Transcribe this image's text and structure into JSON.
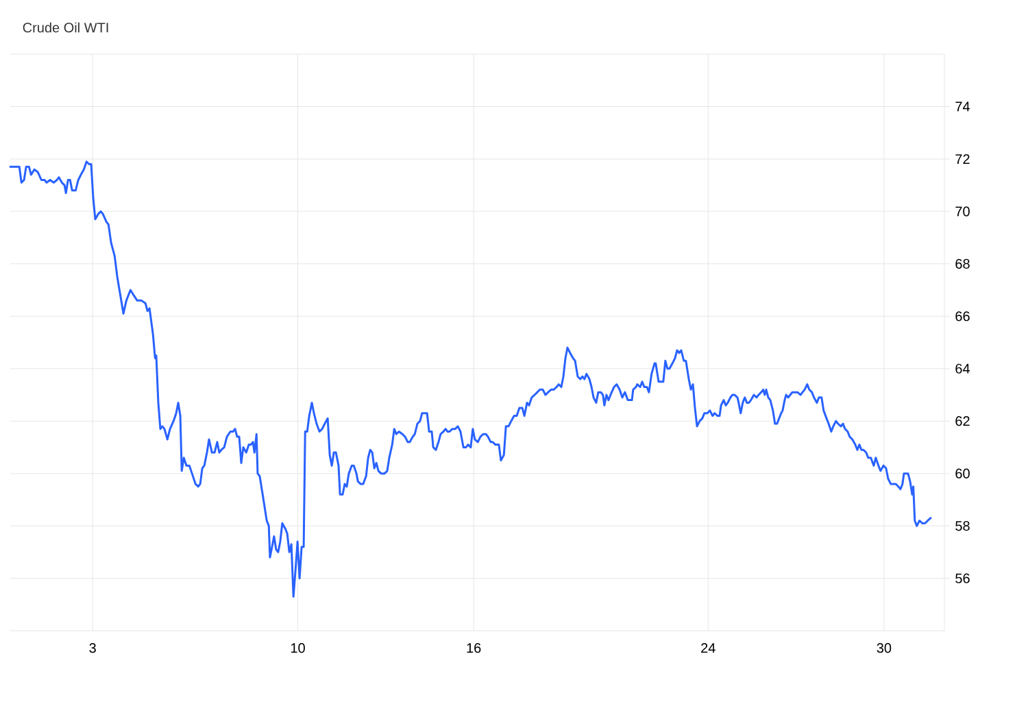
{
  "chart_data": {
    "type": "line",
    "title": "Crude Oil WTI",
    "color": "#2962ff",
    "grid": true,
    "xlim": [
      0.19,
      32.06
    ],
    "xticks": [
      3,
      10,
      16,
      24,
      30
    ],
    "ylim": [
      54,
      76
    ],
    "yticks": [
      56,
      58,
      60,
      62,
      64,
      66,
      68,
      70,
      72,
      74
    ],
    "x": [
      0.19,
      0.43,
      0.5,
      0.57,
      0.66,
      0.73,
      0.83,
      0.9,
      1.01,
      1.13,
      1.25,
      1.36,
      1.43,
      1.55,
      1.67,
      1.78,
      1.85,
      1.95,
      2.04,
      2.09,
      2.16,
      2.23,
      2.3,
      2.42,
      2.51,
      2.6,
      2.7,
      2.79,
      2.88,
      2.95,
      3.02,
      3.09,
      3.19,
      3.28,
      3.35,
      3.47,
      3.54,
      3.63,
      3.75,
      3.84,
      3.96,
      4.05,
      4.15,
      4.29,
      4.4,
      4.52,
      4.66,
      4.8,
      4.87,
      4.94,
      5.06,
      5.13,
      5.17,
      5.24,
      5.31,
      5.38,
      5.45,
      5.55,
      5.64,
      5.76,
      5.85,
      5.92,
      5.99,
      6.04,
      6.11,
      6.2,
      6.3,
      6.39,
      6.51,
      6.6,
      6.67,
      6.74,
      6.81,
      6.9,
      6.97,
      7.07,
      7.16,
      7.25,
      7.32,
      7.39,
      7.49,
      7.58,
      7.7,
      7.79,
      7.86,
      7.93,
      8.0,
      8.07,
      8.14,
      8.24,
      8.33,
      8.4,
      8.47,
      8.52,
      8.59,
      8.63,
      8.7,
      8.8,
      8.87,
      8.94,
      9.01,
      9.05,
      9.12,
      9.19,
      9.26,
      9.33,
      9.4,
      9.47,
      9.57,
      9.64,
      9.71,
      9.78,
      9.85,
      9.92,
      9.99,
      10.06,
      10.13,
      10.2,
      10.25,
      10.32,
      10.39,
      10.48,
      10.55,
      10.64,
      10.74,
      10.83,
      10.92,
      11.02,
      11.09,
      11.16,
      11.23,
      11.3,
      11.39,
      11.44,
      11.53,
      11.6,
      11.67,
      11.74,
      11.84,
      11.91,
      12.0,
      12.05,
      12.14,
      12.23,
      12.33,
      12.4,
      12.47,
      12.54,
      12.61,
      12.68,
      12.75,
      12.84,
      12.96,
      13.05,
      13.12,
      13.22,
      13.29,
      13.36,
      13.45,
      13.57,
      13.66,
      13.75,
      13.82,
      13.92,
      13.99,
      14.08,
      14.17,
      14.24,
      14.34,
      14.41,
      14.48,
      14.57,
      14.62,
      14.71,
      14.8,
      14.87,
      14.97,
      15.04,
      15.11,
      15.18,
      15.27,
      15.37,
      15.46,
      15.55,
      15.65,
      15.74,
      15.81,
      15.9,
      15.97,
      16.04,
      16.14,
      16.23,
      16.32,
      16.42,
      16.49,
      16.58,
      16.65,
      16.74,
      16.86,
      16.93,
      17.03,
      17.1,
      17.19,
      17.28,
      17.38,
      17.47,
      17.56,
      17.66,
      17.73,
      17.82,
      17.89,
      17.98,
      18.08,
      18.17,
      18.26,
      18.36,
      18.45,
      18.54,
      18.64,
      18.73,
      18.83,
      18.9,
      18.99,
      19.06,
      19.13,
      19.2,
      19.29,
      19.39,
      19.46,
      19.55,
      19.64,
      19.71,
      19.78,
      19.85,
      19.95,
      20.02,
      20.09,
      20.18,
      20.25,
      20.34,
      20.41,
      20.46,
      20.53,
      20.6,
      20.67,
      20.79,
      20.88,
      20.98,
      21.07,
      21.16,
      21.26,
      21.35,
      21.4,
      21.44,
      21.54,
      21.58,
      21.68,
      21.75,
      21.82,
      21.91,
      21.98,
      22.07,
      22.17,
      22.21,
      22.31,
      22.4,
      22.47,
      22.54,
      22.61,
      22.68,
      22.78,
      22.87,
      22.94,
      23.01,
      23.08,
      23.17,
      23.24,
      23.34,
      23.41,
      23.48,
      23.55,
      23.62,
      23.71,
      23.8,
      23.87,
      23.97,
      24.06,
      24.15,
      24.22,
      24.32,
      24.39,
      24.44,
      24.53,
      24.6,
      24.67,
      24.76,
      24.83,
      24.9,
      25.0,
      25.04,
      25.11,
      25.18,
      25.25,
      25.32,
      25.39,
      25.46,
      25.56,
      25.65,
      25.72,
      25.81,
      25.88,
      25.93,
      25.98,
      26.05,
      26.12,
      26.21,
      26.28,
      26.35,
      26.42,
      26.49,
      26.54,
      26.61,
      26.66,
      26.73,
      26.8,
      26.87,
      26.96,
      27.05,
      27.15,
      27.22,
      27.29,
      27.38,
      27.45,
      27.54,
      27.61,
      27.71,
      27.78,
      27.87,
      27.94,
      28.04,
      28.11,
      28.2,
      28.27,
      28.36,
      28.43,
      28.53,
      28.6,
      28.67,
      28.76,
      28.83,
      28.92,
      29.02,
      29.09,
      29.16,
      29.23,
      29.3,
      29.39,
      29.46,
      29.55,
      29.65,
      29.72,
      29.81,
      29.88,
      29.98,
      30.07,
      30.14,
      30.23,
      30.3,
      30.4,
      30.49,
      30.56,
      30.63,
      30.68,
      30.75,
      30.82,
      30.89,
      30.96,
      31.0,
      31.05,
      31.12,
      31.21,
      31.31,
      31.4,
      31.49,
      31.59
    ],
    "values": [
      71.7,
      71.7,
      71.7,
      71.1,
      71.2,
      71.7,
      71.7,
      71.4,
      71.6,
      71.5,
      71.2,
      71.2,
      71.1,
      71.2,
      71.1,
      71.2,
      71.3,
      71.1,
      71.0,
      70.7,
      71.2,
      71.2,
      70.8,
      70.8,
      71.2,
      71.4,
      71.6,
      71.9,
      71.8,
      71.8,
      70.5,
      69.7,
      69.9,
      70.0,
      69.9,
      69.6,
      69.5,
      68.8,
      68.3,
      67.5,
      66.7,
      66.1,
      66.6,
      67.0,
      66.8,
      66.6,
      66.6,
      66.5,
      66.2,
      66.3,
      65.3,
      64.4,
      64.5,
      62.7,
      61.7,
      61.8,
      61.7,
      61.3,
      61.7,
      62.0,
      62.3,
      62.7,
      62.2,
      60.1,
      60.6,
      60.3,
      60.3,
      60.0,
      59.6,
      59.5,
      59.6,
      60.2,
      60.3,
      60.8,
      61.3,
      60.8,
      60.8,
      61.2,
      60.8,
      60.9,
      61.0,
      61.4,
      61.6,
      61.6,
      61.7,
      61.4,
      61.4,
      60.4,
      61.0,
      60.8,
      61.1,
      61.1,
      61.2,
      60.8,
      61.5,
      60.0,
      59.9,
      59.2,
      58.7,
      58.2,
      58.0,
      56.8,
      57.2,
      57.6,
      57.1,
      57.0,
      57.4,
      58.1,
      57.9,
      57.7,
      57.0,
      57.3,
      55.3,
      56.3,
      57.4,
      56.0,
      57.2,
      57.2,
      61.6,
      61.6,
      62.2,
      62.7,
      62.3,
      61.9,
      61.6,
      61.7,
      61.9,
      62.1,
      60.7,
      60.3,
      60.8,
      60.8,
      60.3,
      59.2,
      59.2,
      59.6,
      59.5,
      60.0,
      60.3,
      60.3,
      60.0,
      59.7,
      59.6,
      59.6,
      59.9,
      60.6,
      60.9,
      60.8,
      60.2,
      60.4,
      60.1,
      60.0,
      60.0,
      60.1,
      60.6,
      61.1,
      61.7,
      61.5,
      61.6,
      61.5,
      61.4,
      61.2,
      61.2,
      61.4,
      61.5,
      61.9,
      62.0,
      62.3,
      62.3,
      62.3,
      61.6,
      61.6,
      61.0,
      60.9,
      61.2,
      61.5,
      61.6,
      61.7,
      61.6,
      61.6,
      61.7,
      61.7,
      61.8,
      61.6,
      61.0,
      61.0,
      61.1,
      61.0,
      61.7,
      61.3,
      61.2,
      61.4,
      61.5,
      61.5,
      61.4,
      61.2,
      61.2,
      61.1,
      61.1,
      60.5,
      60.7,
      61.8,
      61.8,
      62.0,
      62.2,
      62.2,
      62.5,
      62.5,
      62.2,
      62.7,
      62.6,
      62.9,
      63.0,
      63.1,
      63.2,
      63.2,
      63.0,
      63.1,
      63.2,
      63.2,
      63.3,
      63.4,
      63.3,
      63.7,
      64.4,
      64.8,
      64.6,
      64.4,
      64.3,
      63.7,
      63.6,
      63.7,
      63.6,
      63.8,
      63.6,
      63.3,
      62.9,
      62.7,
      63.1,
      63.1,
      63.0,
      62.6,
      63.0,
      62.8,
      63.0,
      63.3,
      63.4,
      63.2,
      62.9,
      63.1,
      62.8,
      62.8,
      62.8,
      63.2,
      63.3,
      63.4,
      63.3,
      63.5,
      63.3,
      63.3,
      63.1,
      63.8,
      64.2,
      64.2,
      63.5,
      63.5,
      63.5,
      64.3,
      64.0,
      64.0,
      64.2,
      64.4,
      64.7,
      64.6,
      64.7,
      64.3,
      64.3,
      63.6,
      63.2,
      63.4,
      62.5,
      61.8,
      62.0,
      62.1,
      62.3,
      62.3,
      62.4,
      62.2,
      62.3,
      62.2,
      62.2,
      62.6,
      62.8,
      62.6,
      62.7,
      62.9,
      63.0,
      63.0,
      62.9,
      62.7,
      62.3,
      62.7,
      62.9,
      62.7,
      62.7,
      62.8,
      63.0,
      62.9,
      63.0,
      63.1,
      63.2,
      63.0,
      63.2,
      62.9,
      62.8,
      62.4,
      61.9,
      61.9,
      62.1,
      62.3,
      62.4,
      62.8,
      63.0,
      62.9,
      63.0,
      63.1,
      63.1,
      63.1,
      63.0,
      63.1,
      63.2,
      63.4,
      63.2,
      63.1,
      62.9,
      62.7,
      62.9,
      62.9,
      62.4,
      62.1,
      61.9,
      61.6,
      61.8,
      62.0,
      61.9,
      61.8,
      61.9,
      61.7,
      61.6,
      61.4,
      61.3,
      61.1,
      60.9,
      61.1,
      60.9,
      60.9,
      60.8,
      60.6,
      60.6,
      60.3,
      60.6,
      60.3,
      60.1,
      60.3,
      60.2,
      59.8,
      59.6,
      59.6,
      59.6,
      59.5,
      59.4,
      59.6,
      60.0,
      60.0,
      60.0,
      59.7,
      59.2,
      59.5,
      58.2,
      58.0,
      58.2,
      58.1,
      58.1,
      58.2,
      58.3
    ]
  }
}
